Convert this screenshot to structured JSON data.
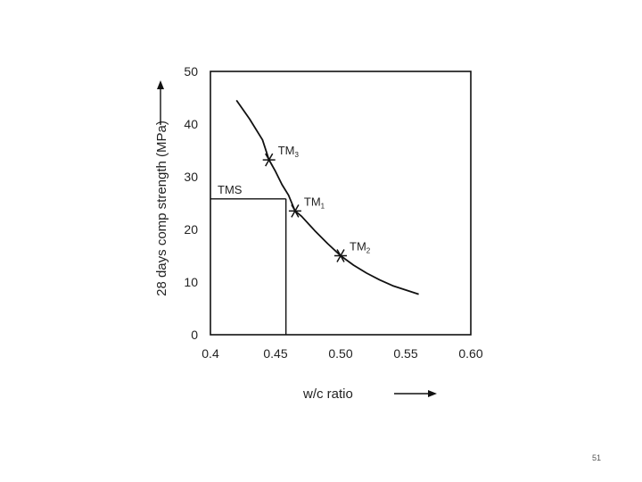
{
  "slide": {
    "page_number": "51"
  },
  "chart_data": {
    "type": "line",
    "title": "",
    "xlabel": "w/c ratio",
    "ylabel": "28 days comp  strength (MPa)",
    "xlim": [
      0.4,
      0.6
    ],
    "ylim": [
      0,
      50
    ],
    "x_tick_labels": [
      "0.4",
      "0.45",
      "0.50",
      "0.55",
      "0.60"
    ],
    "x_tick_values": [
      0.4,
      0.45,
      0.5,
      0.55,
      0.6
    ],
    "y_ticks": [
      0,
      10,
      20,
      30,
      40,
      50
    ],
    "grid": false,
    "series": [
      {
        "x": [
          0.42,
          0.43,
          0.44,
          0.445,
          0.45,
          0.455,
          0.46,
          0.465,
          0.47,
          0.48,
          0.49,
          0.5,
          0.51,
          0.52,
          0.53,
          0.54,
          0.56
        ],
        "y": [
          44.5,
          41.0,
          37.0,
          33.2,
          31.0,
          28.5,
          26.5,
          23.5,
          22.5,
          19.8,
          17.3,
          15.0,
          13.2,
          11.7,
          10.4,
          9.3,
          7.7
        ]
      }
    ],
    "marked_points": [
      {
        "label": "TM",
        "sub": "3",
        "x": 0.445,
        "y": 33.2
      },
      {
        "label": "TM",
        "sub": "1",
        "x": 0.465,
        "y": 23.5
      },
      {
        "label": "TM",
        "sub": "2",
        "x": 0.5,
        "y": 15.0
      }
    ],
    "reference": {
      "label": "TMS",
      "y": 25.8,
      "x": 0.458
    }
  }
}
